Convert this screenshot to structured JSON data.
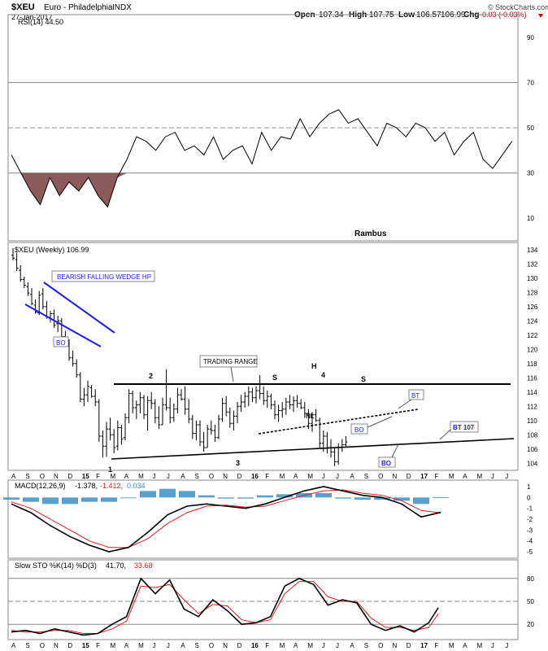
{
  "header": {
    "symbol": "$XEU",
    "name": "Euro - Philadelphia",
    "exchange": "INDX",
    "date": "27-Jan-2017",
    "open_label": "Open",
    "open": "107.34",
    "high_label": "High",
    "high": "107.75",
    "low_label": "Low",
    "low": "106.57",
    "close": "106.99",
    "chg_label": "Chg",
    "chg": "-0.03 (-0.03%)",
    "source": "© StockCharts.com"
  },
  "colors": {
    "price": "#000000",
    "rsi_fill": "#8b5a5a",
    "macd_hist": "#3d8fc6",
    "signal": "#e21b1b",
    "annotation_blue": "#1a1aff",
    "grid": "#aaaaaa"
  },
  "panels": {
    "rsi_label": "RSI(14) 44.50",
    "price_label": "$XEU (Weekly) 106.99",
    "macd_label": "MACD(12,26,9)",
    "macd_values": [
      "-1.378,",
      "-1.412,",
      "0.034"
    ],
    "sto_label": "Slow STO %K(14) %D(3)",
    "sto_values": [
      "41.70,",
      "33.68"
    ]
  },
  "annotations": {
    "watermark": "Rambus",
    "wedge": "BEARISH FALLING WEDGE HP",
    "bo1": "BO",
    "trading_range": "TRADING RANGE",
    "p1": "1",
    "p2": "2",
    "p3": "3",
    "p4": "4",
    "s1": "S",
    "h": "H",
    "s2": "S",
    "nl": "NL",
    "bo2": "BO",
    "bt": "BT",
    "bo3": "BO",
    "bt107": "BT 107"
  },
  "chart_data": [
    {
      "type": "line",
      "title": "RSI(14) 44.50",
      "ylim": [
        0,
        100
      ],
      "yticks": [
        10,
        30,
        50,
        70,
        90
      ],
      "reference_lines": [
        30,
        50,
        70
      ],
      "x_week_index": [
        0,
        2,
        4,
        6,
        8,
        10,
        12,
        14,
        16,
        18,
        20,
        22,
        24,
        26,
        28,
        30,
        32,
        34,
        36,
        38,
        40,
        42,
        44,
        46,
        48,
        50,
        52,
        54,
        56,
        58,
        60,
        62,
        64,
        66,
        68,
        70,
        72,
        74,
        76,
        78,
        80,
        82,
        84,
        86,
        88,
        90,
        92,
        94,
        96,
        98,
        100,
        102,
        104
      ],
      "values": [
        38,
        30,
        22,
        16,
        28,
        20,
        26,
        22,
        28,
        20,
        15,
        28,
        36,
        46,
        44,
        40,
        46,
        48,
        40,
        42,
        38,
        46,
        36,
        40,
        42,
        34,
        48,
        40,
        46,
        45,
        54,
        46,
        52,
        56,
        58,
        52,
        54,
        48,
        42,
        52,
        50,
        46,
        52,
        50,
        44,
        48,
        38,
        44,
        48,
        36,
        32,
        38,
        44
      ]
    },
    {
      "type": "bar",
      "title": "$XEU (Weekly) 106.99",
      "ylim": [
        103,
        135
      ],
      "yticks": [
        104,
        106,
        108,
        110,
        112,
        114,
        116,
        118,
        120,
        122,
        124,
        126,
        128,
        130,
        132,
        134
      ],
      "bars": [
        [
          0,
          132.5,
          134.2,
          133.2,
          132.8
        ],
        [
          1,
          131.0,
          133.5,
          132.6,
          131.4
        ],
        [
          2,
          129.5,
          131.8,
          131.1,
          129.8
        ],
        [
          3,
          128.6,
          130.2,
          129.8,
          129.0
        ],
        [
          4,
          127.5,
          129.4,
          128.8,
          127.9
        ],
        [
          5,
          126.2,
          128.6,
          127.7,
          126.4
        ],
        [
          6,
          125.0,
          127.0,
          126.2,
          125.2
        ],
        [
          7,
          124.8,
          128.2,
          125.1,
          127.6
        ],
        [
          8,
          125.6,
          128.6,
          127.8,
          126.0
        ],
        [
          9,
          124.3,
          126.8,
          126.0,
          124.6
        ],
        [
          10,
          123.8,
          125.4,
          124.5,
          125.0
        ],
        [
          11,
          123.0,
          125.6,
          125.0,
          123.4
        ],
        [
          12,
          122.4,
          124.7,
          123.6,
          124.0
        ],
        [
          13,
          121.4,
          124.4,
          124.0,
          121.8
        ],
        [
          14,
          120.4,
          122.6,
          121.8,
          121.0
        ],
        [
          15,
          118.4,
          121.4,
          121.0,
          118.8
        ],
        [
          16,
          117.6,
          119.8,
          118.8,
          118.0
        ],
        [
          17,
          116.0,
          118.6,
          118.0,
          116.4
        ],
        [
          18,
          112.6,
          116.8,
          116.4,
          113.0
        ],
        [
          19,
          112.0,
          114.6,
          113.0,
          113.6
        ],
        [
          20,
          112.6,
          115.6,
          113.6,
          114.8
        ],
        [
          21,
          113.2,
          115.0,
          114.6,
          113.4
        ],
        [
          22,
          112.0,
          114.4,
          113.4,
          112.6
        ],
        [
          23,
          107.0,
          113.0,
          112.6,
          107.8
        ],
        [
          24,
          104.8,
          108.6,
          107.8,
          106.4
        ],
        [
          25,
          104.9,
          109.8,
          106.4,
          108.8
        ],
        [
          26,
          107.2,
          110.4,
          108.8,
          108.0
        ],
        [
          27,
          105.4,
          108.8,
          108.0,
          106.2
        ],
        [
          28,
          105.8,
          110.0,
          106.4,
          109.0
        ],
        [
          29,
          106.6,
          109.4,
          109.0,
          107.4
        ],
        [
          30,
          107.2,
          111.0,
          107.6,
          110.4
        ],
        [
          31,
          109.6,
          114.4,
          110.4,
          113.8
        ],
        [
          32,
          111.0,
          114.2,
          113.8,
          111.8
        ],
        [
          33,
          110.2,
          112.8,
          111.8,
          112.2
        ],
        [
          34,
          111.0,
          114.0,
          112.2,
          113.2
        ],
        [
          35,
          110.2,
          113.6,
          113.2,
          110.8
        ],
        [
          36,
          108.6,
          113.4,
          110.8,
          112.8
        ],
        [
          37,
          111.6,
          114.0,
          112.8,
          112.4
        ],
        [
          38,
          109.6,
          113.0,
          112.4,
          110.4
        ],
        [
          39,
          108.8,
          112.0,
          110.4,
          109.4
        ],
        [
          40,
          109.4,
          113.2,
          109.4,
          112.2
        ],
        [
          41,
          111.4,
          117.2,
          112.2,
          111.8
        ],
        [
          42,
          109.6,
          113.2,
          111.8,
          110.4
        ],
        [
          43,
          109.8,
          112.4,
          110.4,
          111.6
        ],
        [
          44,
          111.0,
          114.6,
          111.6,
          113.6
        ],
        [
          45,
          112.8,
          114.4,
          113.6,
          113.0
        ],
        [
          46,
          110.8,
          114.8,
          113.0,
          111.6
        ],
        [
          47,
          109.6,
          113.0,
          111.6,
          110.2
        ],
        [
          48,
          107.4,
          110.8,
          110.2,
          108.2
        ],
        [
          49,
          107.2,
          110.0,
          108.2,
          109.4
        ],
        [
          50,
          106.4,
          110.0,
          109.4,
          107.0
        ],
        [
          51,
          105.6,
          108.4,
          107.0,
          106.2
        ],
        [
          52,
          106.2,
          109.4,
          106.2,
          108.8
        ],
        [
          53,
          108.0,
          110.0,
          108.8,
          108.6
        ],
        [
          54,
          107.0,
          109.4,
          108.6,
          107.6
        ],
        [
          55,
          107.4,
          110.8,
          107.6,
          110.2
        ],
        [
          56,
          109.8,
          113.2,
          110.2,
          112.4
        ],
        [
          57,
          110.6,
          113.4,
          112.4,
          111.2
        ],
        [
          58,
          109.0,
          111.8,
          111.2,
          109.6
        ],
        [
          59,
          108.6,
          111.4,
          109.6,
          110.6
        ],
        [
          60,
          109.6,
          112.6,
          110.6,
          112.0
        ],
        [
          61,
          111.2,
          113.6,
          112.0,
          112.6
        ],
        [
          62,
          111.8,
          114.0,
          112.6,
          113.4
        ],
        [
          63,
          112.0,
          114.8,
          113.4,
          114.0
        ],
        [
          64,
          112.6,
          114.6,
          114.0,
          113.2
        ],
        [
          65,
          112.4,
          114.8,
          113.2,
          114.2
        ],
        [
          66,
          113.0,
          116.4,
          114.2,
          113.8
        ],
        [
          67,
          112.2,
          114.8,
          113.8,
          112.8
        ],
        [
          68,
          111.8,
          114.2,
          112.8,
          113.4
        ],
        [
          69,
          111.6,
          113.8,
          113.4,
          112.2
        ],
        [
          70,
          110.2,
          112.8,
          112.2,
          110.8
        ],
        [
          71,
          109.8,
          112.2,
          110.8,
          111.4
        ],
        [
          72,
          110.4,
          112.6,
          111.4,
          111.6
        ],
        [
          73,
          110.8,
          113.2,
          111.6,
          112.6
        ],
        [
          74,
          111.6,
          113.6,
          112.6,
          112.2
        ],
        [
          75,
          111.2,
          113.4,
          112.2,
          112.8
        ],
        [
          76,
          111.8,
          113.6,
          112.8,
          112.4
        ],
        [
          77,
          111.6,
          113.0,
          112.4,
          111.8
        ],
        [
          78,
          110.4,
          112.6,
          111.8,
          111.0
        ],
        [
          79,
          108.8,
          111.6,
          111.0,
          109.6
        ],
        [
          80,
          108.4,
          111.2,
          109.6,
          110.8
        ],
        [
          81,
          109.8,
          111.6,
          110.8,
          110.0
        ],
        [
          82,
          106.2,
          110.4,
          110.0,
          106.8
        ],
        [
          83,
          105.6,
          108.6,
          106.8,
          107.8
        ],
        [
          84,
          105.4,
          108.4,
          107.8,
          106.2
        ],
        [
          85,
          104.8,
          107.4,
          106.2,
          105.6
        ],
        [
          86,
          103.6,
          106.2,
          105.6,
          104.2
        ],
        [
          87,
          103.8,
          106.8,
          104.2,
          106.2
        ],
        [
          88,
          105.6,
          107.4,
          106.2,
          106.6
        ],
        [
          89,
          106.2,
          107.8,
          106.6,
          107.0
        ]
      ]
    },
    {
      "type": "line",
      "title": "MACD(12,26,9)",
      "ylim": [
        -5.6,
        1.6
      ],
      "yticks": [
        1,
        0,
        -1,
        -2,
        -3,
        -4,
        -5
      ],
      "x_week_index": [
        0,
        4,
        8,
        12,
        16,
        20,
        24,
        28,
        32,
        36,
        40,
        44,
        48,
        52,
        56,
        60,
        64,
        68,
        72,
        76,
        80,
        84,
        88
      ],
      "series": [
        {
          "name": "MACD",
          "values": [
            -0.6,
            -1.4,
            -2.6,
            -3.6,
            -4.4,
            -5.0,
            -4.6,
            -3.2,
            -1.6,
            -0.8,
            -0.6,
            -0.8,
            -1.0,
            -0.6,
            0.0,
            0.6,
            1.0,
            0.6,
            0.2,
            0.0,
            -0.6,
            -1.8,
            -1.378
          ]
        },
        {
          "name": "Signal",
          "values": [
            -0.4,
            -1.0,
            -2.0,
            -3.0,
            -4.0,
            -4.6,
            -4.6,
            -3.8,
            -2.4,
            -1.4,
            -0.8,
            -0.7,
            -0.9,
            -0.8,
            -0.3,
            0.2,
            0.6,
            0.7,
            0.4,
            0.2,
            -0.3,
            -1.2,
            -1.412
          ]
        },
        {
          "name": "Histogram",
          "values": [
            -0.2,
            -0.4,
            -0.6,
            -0.6,
            -0.4,
            -0.4,
            0.0,
            0.6,
            0.8,
            0.6,
            0.2,
            -0.1,
            -0.1,
            0.2,
            0.3,
            0.4,
            0.4,
            -0.1,
            -0.2,
            -0.2,
            -0.3,
            -0.6,
            0.034
          ]
        }
      ]
    },
    {
      "type": "line",
      "title": "Slow STO %K(14) %D(3)",
      "ylim": [
        0,
        100
      ],
      "yticks": [
        20,
        50,
        80
      ],
      "reference_lines": [
        20,
        50,
        80
      ],
      "x_week_index": [
        0,
        3,
        6,
        9,
        12,
        15,
        18,
        21,
        24,
        27,
        30,
        33,
        36,
        39,
        42,
        45,
        48,
        51,
        54,
        57,
        60,
        63,
        66,
        69,
        72,
        75,
        78,
        81,
        84,
        87,
        89
      ],
      "series": [
        {
          "name": "%K",
          "values": [
            10,
            12,
            8,
            14,
            10,
            6,
            8,
            20,
            30,
            80,
            60,
            78,
            40,
            30,
            52,
            38,
            20,
            22,
            30,
            70,
            80,
            72,
            45,
            52,
            48,
            20,
            12,
            18,
            10,
            22,
            41.7
          ]
        },
        {
          "name": "%D",
          "values": [
            12,
            10,
            10,
            12,
            12,
            8,
            8,
            14,
            24,
            70,
            68,
            72,
            52,
            34,
            46,
            44,
            26,
            22,
            26,
            60,
            76,
            76,
            56,
            50,
            50,
            28,
            16,
            16,
            12,
            16,
            33.68
          ]
        }
      ]
    }
  ],
  "x_axis_labels": [
    "A",
    "S",
    "O",
    "N",
    "D",
    "15",
    "F",
    "M",
    "A",
    "M",
    "J",
    "J",
    "A",
    "S",
    "O",
    "N",
    "D",
    "16",
    "F",
    "M",
    "A",
    "M",
    "J",
    "J",
    "A",
    "S",
    "O",
    "N",
    "D",
    "17",
    "F",
    "M",
    "A",
    "M",
    "J",
    "J"
  ]
}
